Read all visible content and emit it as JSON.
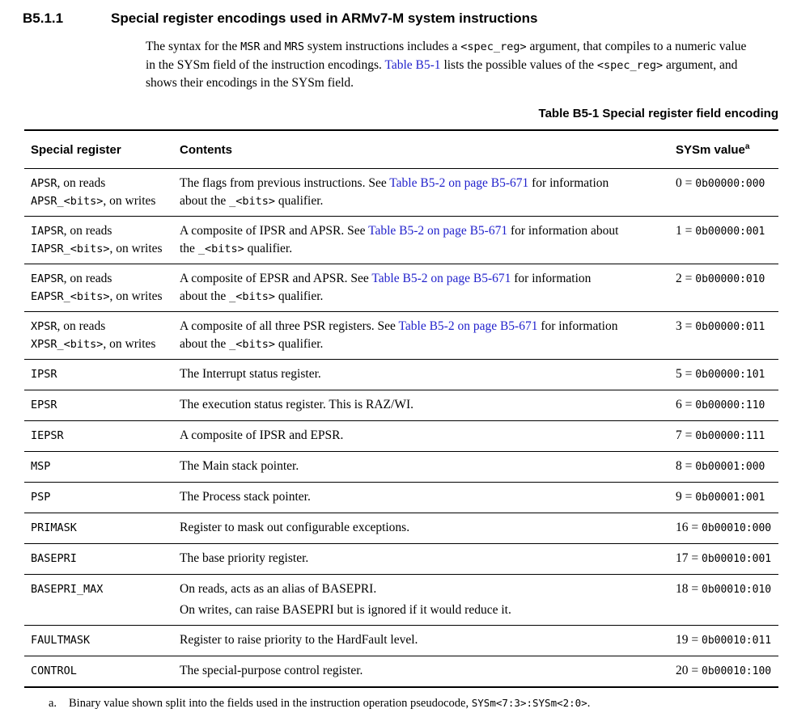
{
  "page": {
    "background": "#ffffff",
    "link_color": "#2222cc"
  },
  "heading": {
    "number": "B5.1.1",
    "title": "Special register encodings used in ARMv7-M system instructions"
  },
  "intro_lines": [
    [
      {
        "t": "The syntax for the "
      },
      {
        "t": "MSR",
        "m": true
      },
      {
        "t": " and "
      },
      {
        "t": "MRS",
        "m": true
      },
      {
        "t": " system instructions includes a "
      },
      {
        "t": "<spec_reg>",
        "m": true
      },
      {
        "t": " argument, that compiles to a numeric value"
      }
    ],
    [
      {
        "t": "in the SYSm field of the instruction encodings. "
      },
      {
        "t": "Table B5-1",
        "l": true
      },
      {
        "t": " lists the possible values of the "
      },
      {
        "t": "<spec_reg>",
        "m": true
      },
      {
        "t": " argument, and"
      }
    ],
    [
      {
        "t": "shows their encodings in the SYSm field."
      }
    ]
  ],
  "table": {
    "caption": "Table B5-1 Special register field encoding",
    "headers": {
      "col1": "Special register",
      "col2": "Contents",
      "col3": "SYSm value",
      "col3_sup": "a"
    },
    "rows": [
      {
        "register": [
          [
            {
              "t": "APSR",
              "m": true
            },
            {
              "t": ", on reads"
            }
          ],
          [
            {
              "t": "APSR_<bits>",
              "m": true
            },
            {
              "t": ", on writes"
            }
          ]
        ],
        "contents": [
          [
            {
              "t": "The flags from previous instructions. See "
            },
            {
              "t": "Table B5-2 on page B5-671",
              "l": true
            },
            {
              "t": " for information"
            }
          ],
          [
            {
              "t": "about the "
            },
            {
              "t": "_<bits>",
              "m": true
            },
            {
              "t": " qualifier."
            }
          ]
        ],
        "value": {
          "pre": "0 = ",
          "mono": "0b00000:000"
        }
      },
      {
        "register": [
          [
            {
              "t": "IAPSR",
              "m": true
            },
            {
              "t": ", on reads"
            }
          ],
          [
            {
              "t": "IAPSR_<bits>",
              "m": true
            },
            {
              "t": ", on writes"
            }
          ]
        ],
        "contents": [
          [
            {
              "t": "A composite of IPSR and APSR. See "
            },
            {
              "t": "Table B5-2 on page B5-671",
              "l": true
            },
            {
              "t": " for information about"
            }
          ],
          [
            {
              "t": "the "
            },
            {
              "t": "_<bits>",
              "m": true
            },
            {
              "t": " qualifier."
            }
          ]
        ],
        "value": {
          "pre": "1 = ",
          "mono": "0b00000:001"
        }
      },
      {
        "register": [
          [
            {
              "t": "EAPSR",
              "m": true
            },
            {
              "t": ", on reads"
            }
          ],
          [
            {
              "t": "EAPSR_<bits>",
              "m": true
            },
            {
              "t": ", on writes"
            }
          ]
        ],
        "contents": [
          [
            {
              "t": "A composite of EPSR and APSR. See "
            },
            {
              "t": "Table B5-2 on page B5-671",
              "l": true
            },
            {
              "t": " for information"
            }
          ],
          [
            {
              "t": "about the "
            },
            {
              "t": "_<bits>",
              "m": true
            },
            {
              "t": " qualifier."
            }
          ]
        ],
        "value": {
          "pre": "2 = ",
          "mono": "0b00000:010"
        }
      },
      {
        "register": [
          [
            {
              "t": "XPSR",
              "m": true
            },
            {
              "t": ", on reads"
            }
          ],
          [
            {
              "t": "XPSR_<bits>",
              "m": true
            },
            {
              "t": ", on writes"
            }
          ]
        ],
        "contents": [
          [
            {
              "t": "A composite of all three PSR registers. See "
            },
            {
              "t": "Table B5-2 on page B5-671",
              "l": true
            },
            {
              "t": " for information"
            }
          ],
          [
            {
              "t": "about the "
            },
            {
              "t": "_<bits>",
              "m": true
            },
            {
              "t": " qualifier."
            }
          ]
        ],
        "value": {
          "pre": "3 = ",
          "mono": "0b00000:011"
        }
      },
      {
        "register": [
          [
            {
              "t": "IPSR",
              "m": true
            }
          ]
        ],
        "contents": [
          [
            {
              "t": "The Interrupt status register."
            }
          ]
        ],
        "value": {
          "pre": "5 = ",
          "mono": "0b00000:101"
        }
      },
      {
        "register": [
          [
            {
              "t": "EPSR",
              "m": true
            }
          ]
        ],
        "contents": [
          [
            {
              "t": "The execution status register. This is RAZ/WI."
            }
          ]
        ],
        "value": {
          "pre": "6 = ",
          "mono": "0b00000:110"
        }
      },
      {
        "register": [
          [
            {
              "t": "IEPSR",
              "m": true
            }
          ]
        ],
        "contents": [
          [
            {
              "t": "A composite of IPSR and EPSR."
            }
          ]
        ],
        "value": {
          "pre": "7 = ",
          "mono": "0b00000:111"
        }
      },
      {
        "register": [
          [
            {
              "t": "MSP",
              "m": true
            }
          ]
        ],
        "contents": [
          [
            {
              "t": "The Main stack pointer."
            }
          ]
        ],
        "value": {
          "pre": "8 = ",
          "mono": "0b00001:000"
        }
      },
      {
        "register": [
          [
            {
              "t": "PSP",
              "m": true
            }
          ]
        ],
        "contents": [
          [
            {
              "t": "The Process stack pointer."
            }
          ]
        ],
        "value": {
          "pre": "9 = ",
          "mono": "0b00001:001"
        }
      },
      {
        "register": [
          [
            {
              "t": "PRIMASK",
              "m": true
            }
          ]
        ],
        "contents": [
          [
            {
              "t": "Register to mask out configurable exceptions."
            }
          ]
        ],
        "value": {
          "pre": "16 = ",
          "mono": "0b00010:000"
        }
      },
      {
        "register": [
          [
            {
              "t": "BASEPRI",
              "m": true
            }
          ]
        ],
        "contents": [
          [
            {
              "t": "The base priority register."
            }
          ]
        ],
        "value": {
          "pre": "17 = ",
          "mono": "0b00010:001"
        }
      },
      {
        "gap": true,
        "register": [
          [
            {
              "t": "BASEPRI_MAX",
              "m": true
            }
          ]
        ],
        "contents": [
          [
            {
              "t": "On reads, acts as an alias of BASEPRI."
            }
          ],
          [
            {
              "t": "On writes, can raise BASEPRI but is ignored if it would reduce it."
            }
          ]
        ],
        "value": {
          "pre": "18 = ",
          "mono": "0b00010:010"
        }
      },
      {
        "register": [
          [
            {
              "t": "FAULTMASK",
              "m": true
            }
          ]
        ],
        "contents": [
          [
            {
              "t": "Register to raise priority to the HardFault level."
            }
          ]
        ],
        "value": {
          "pre": "19 = ",
          "mono": "0b00010:011"
        }
      },
      {
        "register": [
          [
            {
              "t": "CONTROL",
              "m": true
            }
          ]
        ],
        "contents": [
          [
            {
              "t": "The special-purpose control register."
            }
          ]
        ],
        "value": {
          "pre": "20 = ",
          "mono": "0b00010:100"
        }
      }
    ],
    "footnote": {
      "marker": "a.",
      "segments": [
        {
          "t": "Binary value shown split into the fields used in the instruction operation pseudocode, "
        },
        {
          "t": "SYSm<7:3>:SYSm<2:0>",
          "m": true
        },
        {
          "t": "."
        }
      ]
    }
  }
}
